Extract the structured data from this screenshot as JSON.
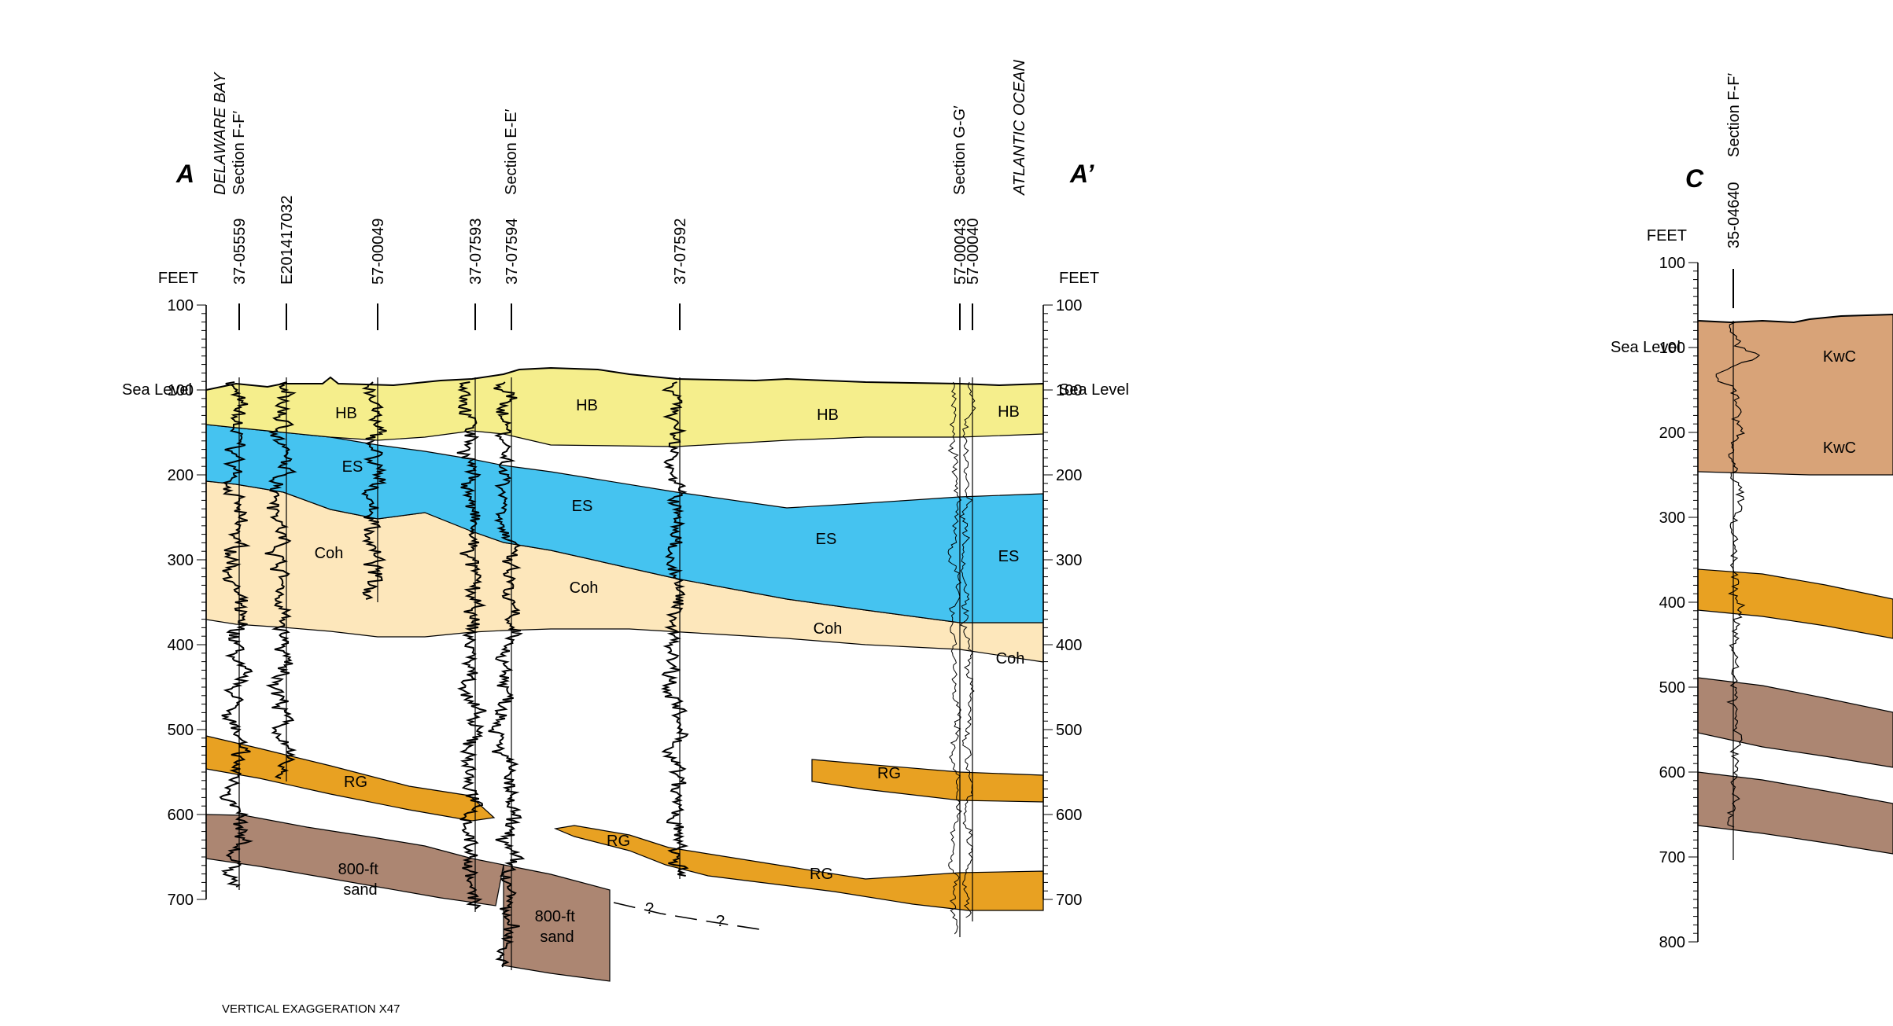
{
  "section_a": {
    "start_label": "A",
    "end_label": "A’",
    "axis_unit": "FEET",
    "sea_level_label": "Sea Level",
    "ticks": [
      "100",
      "100",
      "200",
      "300",
      "400",
      "500",
      "600",
      "700"
    ],
    "wells": [
      "37-05559",
      "E201417032",
      "57-00049",
      "37-07593",
      "37-07594",
      "37-07592",
      "57-00043",
      "57-00040"
    ],
    "top_labels": {
      "delaware_bay": "DELAWARE BAY",
      "section_ff_left": "Section F-F′",
      "section_ee": "Section E-E′",
      "section_gg": "Section G-G′",
      "atlantic_ocean": "ATLANTIC OCEAN"
    },
    "units": {
      "hb": [
        "HB",
        "HB",
        "HB",
        "HB"
      ],
      "es": [
        "ES",
        "ES",
        "ES",
        "ES"
      ],
      "coh": [
        "Coh",
        "Coh",
        "Coh",
        "Coh"
      ],
      "rg": [
        "RG",
        "RG",
        "RG",
        "RG"
      ],
      "sand": [
        "800-ft\nsand",
        "800-ft\nsand"
      ]
    },
    "question_marks": [
      "?",
      "?"
    ],
    "vertical_exaggeration": "VERTICAL EXAGGERATION X47"
  },
  "section_c": {
    "start_label": "C",
    "axis_unit": "FEET",
    "sea_level_label": "Sea Level",
    "ticks": [
      "100",
      "100",
      "200",
      "300",
      "400",
      "500",
      "600",
      "700",
      "800"
    ],
    "well": "35-04640",
    "section_label": "Section F-F′",
    "units": [
      "KwC",
      "KwC"
    ]
  },
  "colors": {
    "hb": "#f5ee8c",
    "es": "#45c3f0",
    "coh": "#fde7bb",
    "rg": "#e8a122",
    "sand": "#ac8672",
    "kwc": "#d8a378"
  }
}
